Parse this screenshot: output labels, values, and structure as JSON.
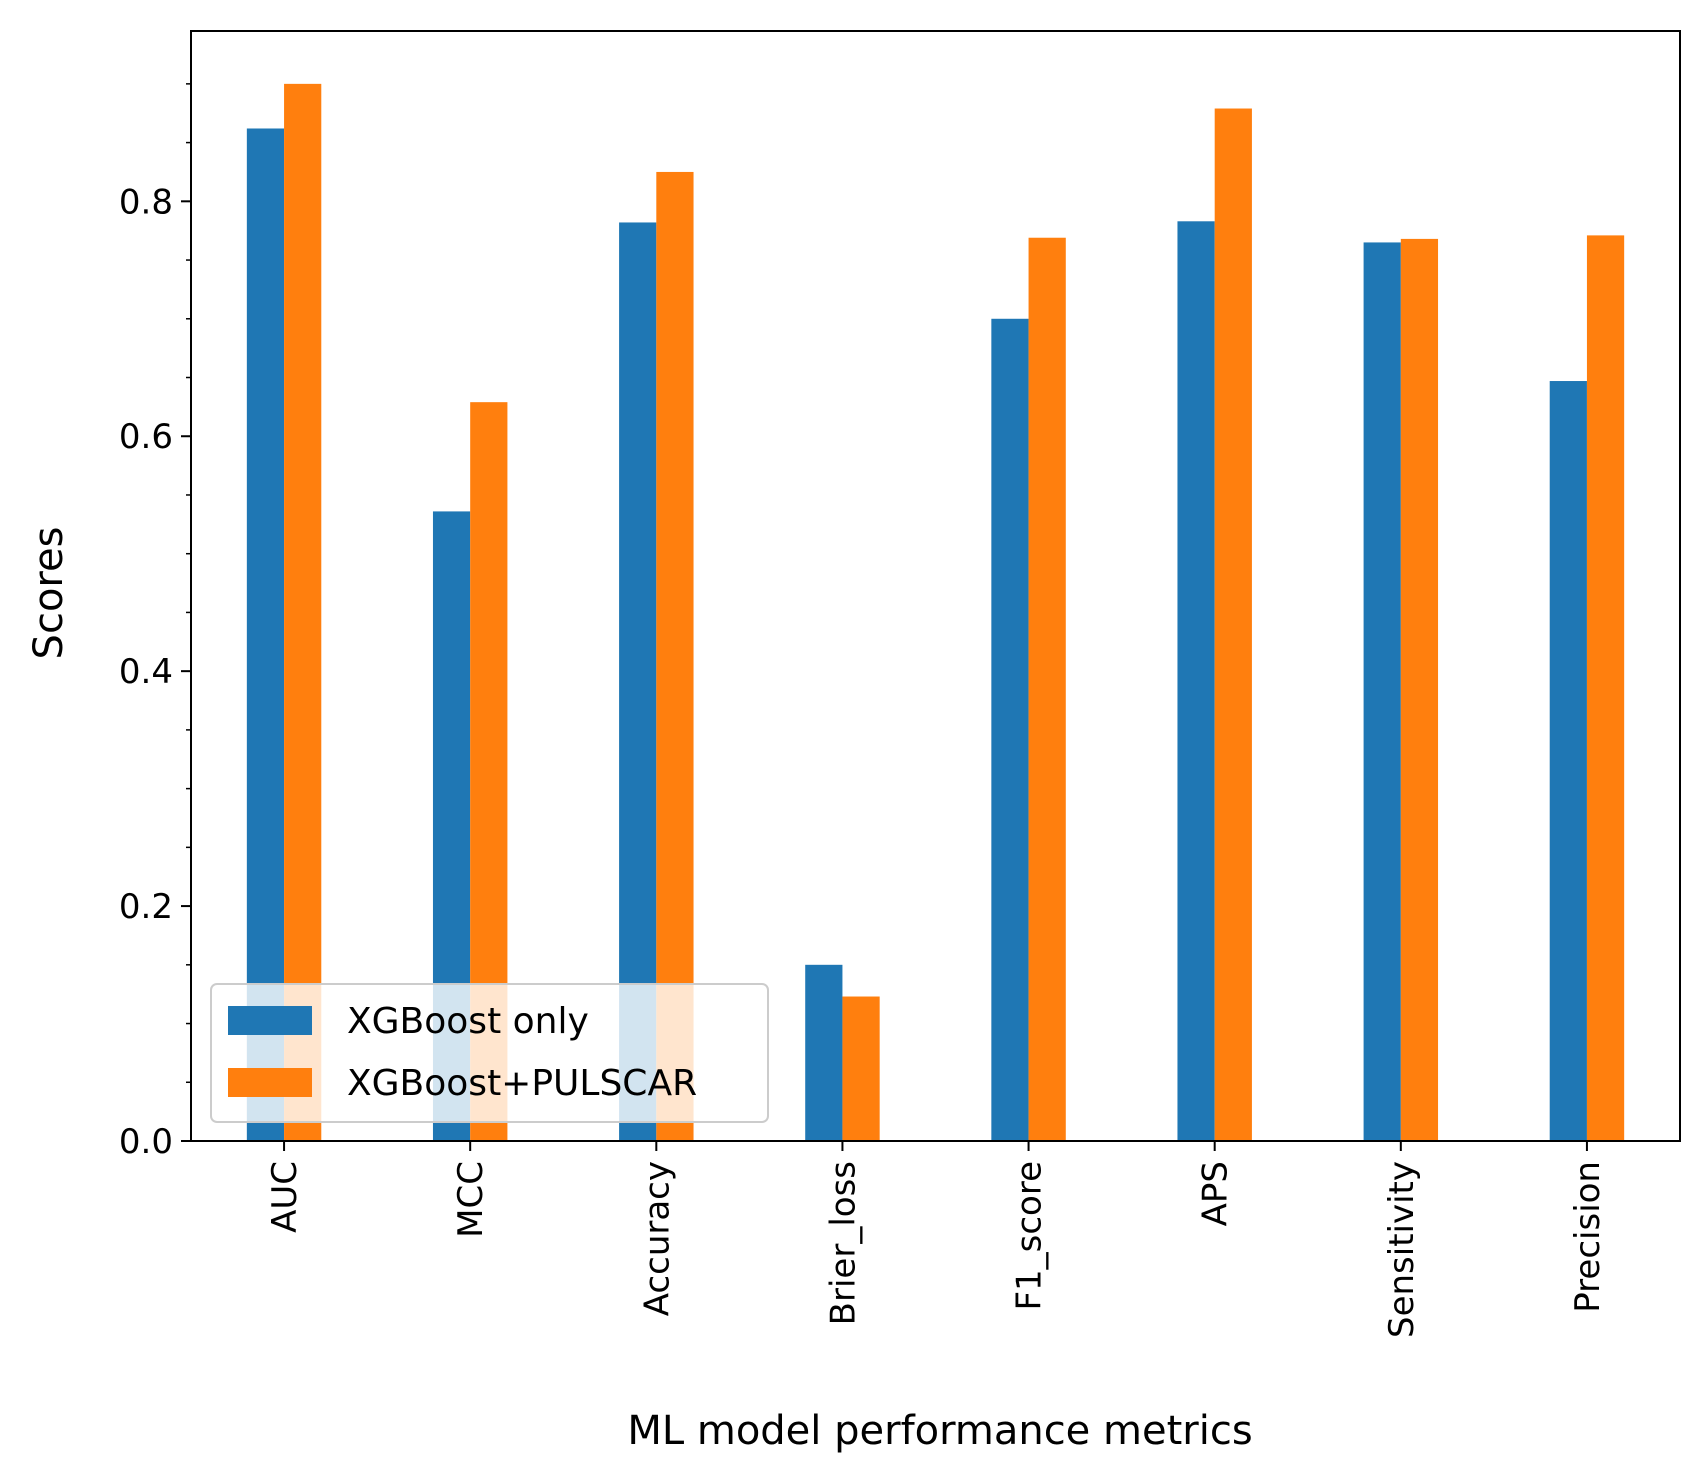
{
  "chart_data": {
    "type": "bar",
    "title": "",
    "xlabel": "ML model performance metrics",
    "ylabel": "Scores",
    "categories": [
      "AUC",
      "MCC",
      "Accuracy",
      "Brier_loss",
      "F1_score",
      "APS",
      "Sensitivity",
      "Precision"
    ],
    "series": [
      {
        "name": "XGBoost only",
        "color": "#1f77b4",
        "values": [
          0.862,
          0.536,
          0.782,
          0.15,
          0.7,
          0.783,
          0.765,
          0.647
        ]
      },
      {
        "name": "XGBoost+PULSCAR",
        "color": "#ff7f0e",
        "values": [
          0.9,
          0.629,
          0.825,
          0.123,
          0.769,
          0.879,
          0.768,
          0.771
        ]
      }
    ],
    "ylim": [
      0.0,
      0.945
    ],
    "yticks": [
      "0.0",
      "0.2",
      "0.4",
      "0.6",
      "0.8"
    ],
    "legend_position": "lower-left",
    "grid": false
  }
}
